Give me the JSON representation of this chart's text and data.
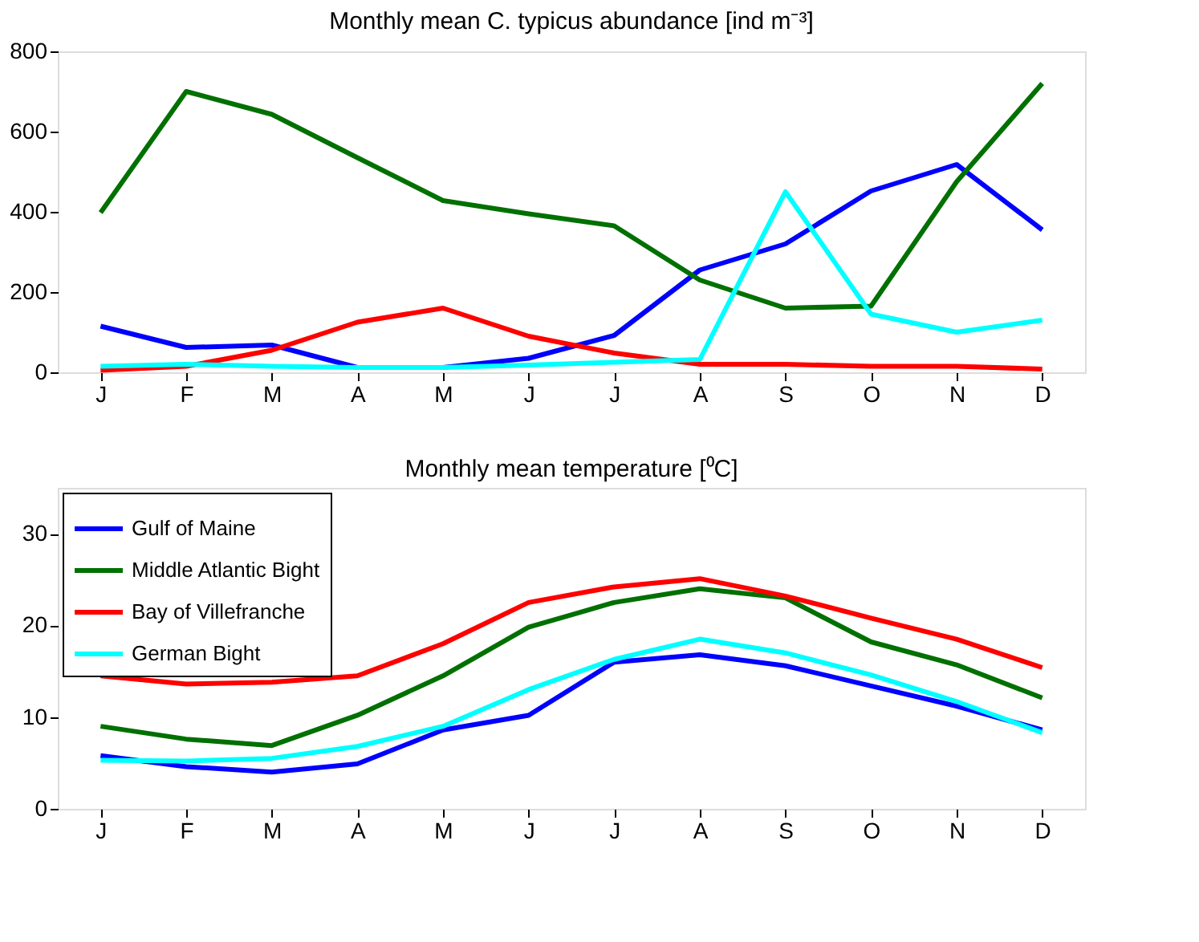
{
  "chart_data": [
    {
      "type": "line",
      "title": "Monthly mean C. typicus abundance [ind m⁻³]",
      "categories": [
        "J",
        "F",
        "M",
        "A",
        "M",
        "J",
        "J",
        "A",
        "S",
        "O",
        "N",
        "D"
      ],
      "ylim": [
        0,
        800
      ],
      "yticks": [
        0,
        200,
        400,
        600,
        800
      ],
      "grid": false,
      "series": [
        {
          "color": "#0000ff",
          "values": [
            115,
            62,
            68,
            12,
            12,
            35,
            92,
            255,
            320,
            452,
            518,
            355
          ]
        },
        {
          "color": "#007000",
          "values": [
            398,
            700,
            643,
            535,
            428,
            395,
            365,
            230,
            160,
            165,
            475,
            720
          ]
        },
        {
          "color": "#ff0000",
          "values": [
            5,
            15,
            55,
            125,
            160,
            90,
            48,
            20,
            20,
            15,
            15,
            8
          ]
        },
        {
          "color": "#00ffff",
          "values": [
            15,
            20,
            15,
            12,
            12,
            18,
            25,
            32,
            450,
            145,
            100,
            130
          ]
        }
      ]
    },
    {
      "type": "line",
      "title": "Monthly mean temperature [⁰C]",
      "categories": [
        "J",
        "F",
        "M",
        "A",
        "M",
        "J",
        "J",
        "A",
        "S",
        "O",
        "N",
        "D"
      ],
      "ylim": [
        0,
        35
      ],
      "yticks": [
        0,
        10,
        20,
        30
      ],
      "grid": false,
      "legend": "top left",
      "series": [
        {
          "name": "Gulf of Maine",
          "color": "#0000ff",
          "values": [
            5.8,
            4.6,
            4.0,
            4.9,
            8.6,
            10.2,
            16.0,
            16.8,
            15.6,
            13.4,
            11.2,
            8.6
          ]
        },
        {
          "name": "Middle Atlantic Bight",
          "color": "#007000",
          "values": [
            9.0,
            7.6,
            6.9,
            10.2,
            14.5,
            19.8,
            22.5,
            24.0,
            23.0,
            18.2,
            15.7,
            12.1
          ]
        },
        {
          "name": "Bay of Villefranche",
          "color": "#ff0000",
          "values": [
            14.5,
            13.6,
            13.8,
            14.5,
            18.0,
            22.5,
            24.2,
            25.1,
            23.2,
            20.8,
            18.5,
            15.4
          ]
        },
        {
          "name": "German Bight",
          "color": "#00ffff",
          "values": [
            5.3,
            5.2,
            5.5,
            6.8,
            9.0,
            13.0,
            16.3,
            18.5,
            17.0,
            14.6,
            11.7,
            8.3
          ]
        }
      ]
    }
  ]
}
